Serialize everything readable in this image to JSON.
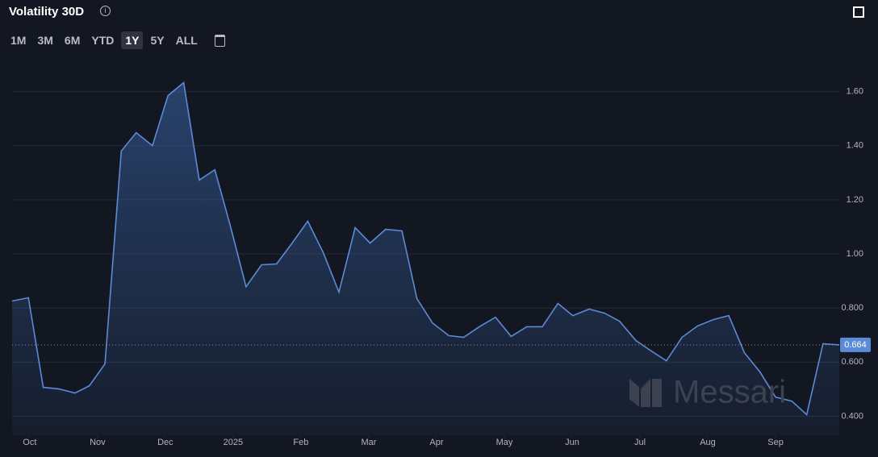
{
  "title": "Volatility 30D",
  "range_buttons": [
    "1M",
    "3M",
    "6M",
    "YTD",
    "1Y",
    "5Y",
    "ALL"
  ],
  "active_range": "1Y",
  "watermark": "Messari",
  "chart_data": {
    "type": "area",
    "x": [
      -0.26,
      -0.02,
      0.2,
      0.43,
      0.67,
      0.88,
      1.11,
      1.35,
      1.57,
      1.81,
      2.04,
      2.27,
      2.5,
      2.73,
      2.96,
      3.19,
      3.42,
      3.64,
      3.87,
      4.1,
      4.33,
      4.56,
      4.8,
      5.02,
      5.25,
      5.49,
      5.71,
      5.94,
      6.18,
      6.4,
      6.63,
      6.87,
      7.1,
      7.33,
      7.56,
      7.79,
      8.01,
      8.25,
      8.48,
      8.7,
      8.94,
      9.17,
      9.39,
      9.62,
      9.85,
      10.08,
      10.31,
      10.54,
      10.77,
      11.0,
      11.24,
      11.46,
      11.7,
      11.94
    ],
    "series": [
      {
        "name": "Volatility 30D",
        "color": "#5b8bd6",
        "values": [
          0.826,
          0.838,
          0.507,
          0.501,
          0.486,
          0.513,
          0.594,
          1.38,
          1.448,
          1.4,
          1.585,
          1.633,
          1.273,
          1.311,
          1.103,
          0.879,
          0.96,
          0.963,
          1.04,
          1.121,
          1.005,
          0.859,
          1.097,
          1.04,
          1.091,
          1.085,
          0.835,
          0.745,
          0.698,
          0.692,
          0.731,
          0.766,
          0.695,
          0.731,
          0.731,
          0.817,
          0.772,
          0.796,
          0.781,
          0.751,
          0.68,
          0.641,
          0.605,
          0.692,
          0.734,
          0.757,
          0.772,
          0.635,
          0.564,
          0.471,
          0.456,
          0.406,
          0.668,
          0.664
        ]
      }
    ],
    "xlim": [
      -0.26,
      11.94
    ],
    "xticks": [
      {
        "value": 0,
        "label": "Oct"
      },
      {
        "value": 1,
        "label": "Nov"
      },
      {
        "value": 2,
        "label": "Dec"
      },
      {
        "value": 3,
        "label": "2025"
      },
      {
        "value": 4,
        "label": "Feb"
      },
      {
        "value": 5,
        "label": "Mar"
      },
      {
        "value": 6,
        "label": "Apr"
      },
      {
        "value": 7,
        "label": "May"
      },
      {
        "value": 8,
        "label": "Jun"
      },
      {
        "value": 9,
        "label": "Jul"
      },
      {
        "value": 10,
        "label": "Aug"
      },
      {
        "value": 11,
        "label": "Sep"
      }
    ],
    "ylim": [
      0.33,
      1.7
    ],
    "yticks": [
      {
        "value": 0.4,
        "label": "0.400"
      },
      {
        "value": 0.6,
        "label": "0.600"
      },
      {
        "value": 0.8,
        "label": "0.800"
      },
      {
        "value": 1.0,
        "label": "1.00"
      },
      {
        "value": 1.2,
        "label": "1.20"
      },
      {
        "value": 1.4,
        "label": "1.40"
      },
      {
        "value": 1.6,
        "label": "1.60"
      }
    ],
    "grid": true
  }
}
